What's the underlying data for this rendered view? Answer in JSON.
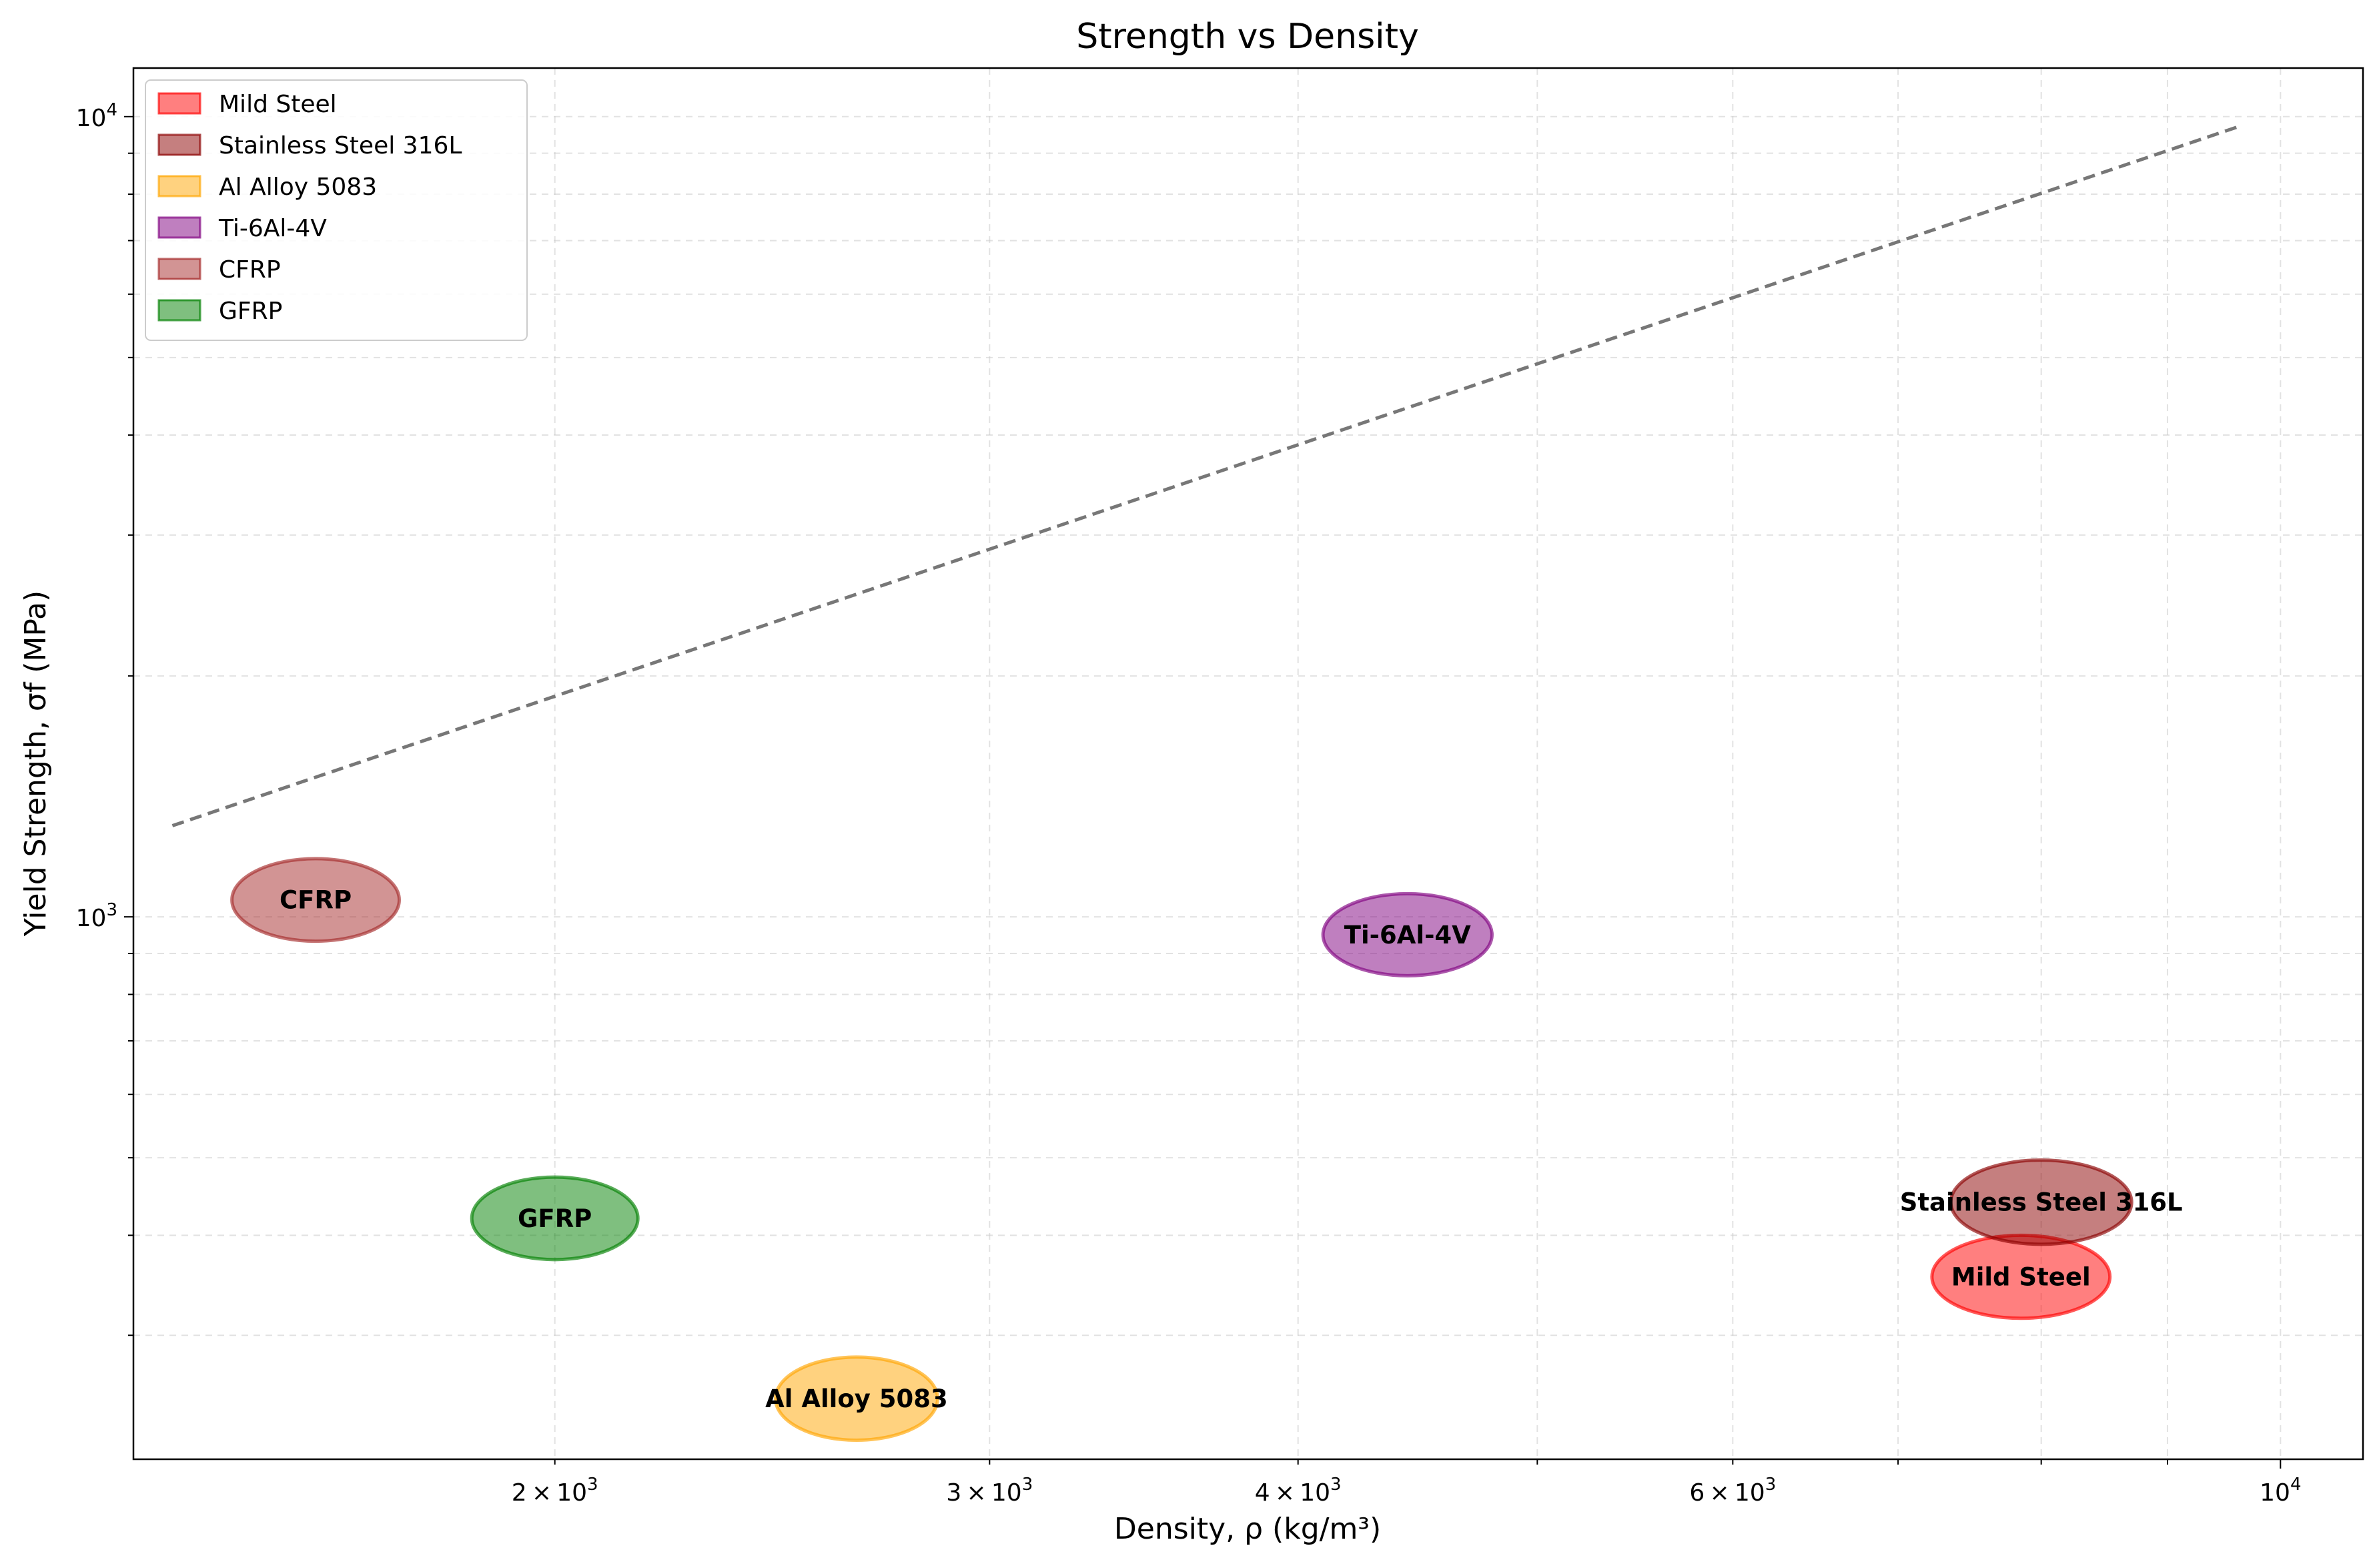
{
  "chart_data": {
    "type": "scatter",
    "title": "Strength vs Density",
    "xlabel": "Density, ρ (kg/m³)",
    "ylabel": "Yield Strength, σf (MPa)",
    "xscale": "log",
    "yscale": "log",
    "xlim": [
      1350,
      10800
    ],
    "ylim": [
      210,
      11500
    ],
    "grid": true,
    "legend_position": "top-left",
    "x_ticks": [
      {
        "value": 2000,
        "mantissa": "2",
        "exp": "3"
      },
      {
        "value": 3000,
        "mantissa": "3",
        "exp": "3"
      },
      {
        "value": 4000,
        "mantissa": "4",
        "exp": "3"
      },
      {
        "value": 6000,
        "mantissa": "6",
        "exp": "3"
      },
      {
        "value": 10000,
        "mantissa": "",
        "exp": "4"
      }
    ],
    "y_ticks": [
      {
        "value": 1000,
        "exp": "3"
      },
      {
        "value": 10000,
        "exp": "4"
      }
    ],
    "series": [
      {
        "name": "Mild Steel",
        "label": "Mild Steel",
        "density": 7850,
        "strength": 355,
        "density_span": [
          7200,
          8500
        ],
        "strength_span": [
          315,
          400
        ],
        "color": "#ff0000",
        "opacity": 0.5
      },
      {
        "name": "Stainless Steel 316L",
        "label": "Stainless Steel 316L",
        "density": 8000,
        "strength": 440,
        "density_span": [
          7350,
          8700
        ],
        "strength_span": [
          390,
          497
        ],
        "color": "#8b0000",
        "opacity": 0.5
      },
      {
        "name": "Al Alloy 5083",
        "label": "Al Alloy 5083",
        "density": 2650,
        "strength": 250,
        "density_span": [
          2450,
          2850
        ],
        "strength_span": [
          222,
          282
        ],
        "color": "#ffa500",
        "opacity": 0.5
      },
      {
        "name": "Ti-6Al-4V",
        "label": "Ti-6Al-4V",
        "density": 4430,
        "strength": 950,
        "density_span": [
          4100,
          4800
        ],
        "strength_span": [
          845,
          1070
        ],
        "color": "#800080",
        "opacity": 0.5
      },
      {
        "name": "CFRP",
        "label": "CFRP",
        "density": 1600,
        "strength": 1050,
        "density_span": [
          1480,
          1730
        ],
        "strength_span": [
          932,
          1182
        ],
        "color": "#a52a2a",
        "opacity": 0.5
      },
      {
        "name": "GFRP",
        "label": "GFRP",
        "density": 2000,
        "strength": 420,
        "density_span": [
          1850,
          2160
        ],
        "strength_span": [
          373,
          473
        ],
        "color": "#008000",
        "opacity": 0.5
      }
    ],
    "guide_line": {
      "x": [
        1400,
        9600
      ],
      "y": [
        1300,
        9700
      ],
      "color": "#777777",
      "style": "dashed"
    }
  }
}
